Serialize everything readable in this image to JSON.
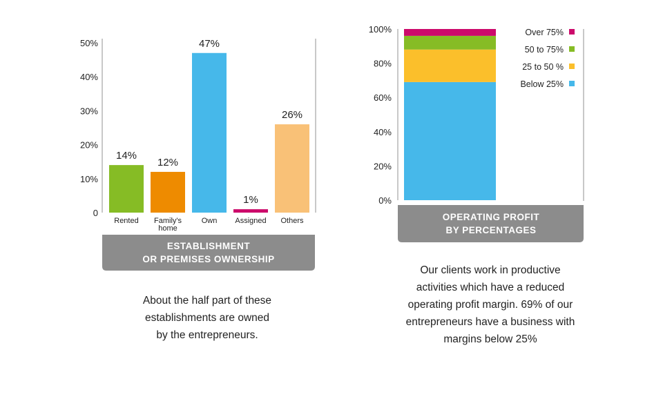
{
  "chart_data": [
    {
      "type": "bar",
      "title": "ESTABLISHMENT OR PREMISES OWNERSHIP",
      "title_lines": [
        "ESTABLISHMENT",
        "OR PREMISES OWNERSHIP"
      ],
      "categories": [
        {
          "label_lines": [
            "Rented"
          ]
        },
        {
          "label_lines": [
            "Family's",
            "home"
          ]
        },
        {
          "label_lines": [
            "Own"
          ]
        },
        {
          "label_lines": [
            "Assigned"
          ]
        },
        {
          "label_lines": [
            "Others"
          ]
        }
      ],
      "values": [
        14,
        12,
        47,
        1,
        26
      ],
      "data_labels": [
        "14%",
        "12%",
        "47%",
        "1%",
        "26%"
      ],
      "colors": [
        "#86bc25",
        "#ee8b00",
        "#46b8ea",
        "#cc0a6b",
        "#f9c177"
      ],
      "ylim": [
        0,
        50
      ],
      "yticks": [
        0,
        10,
        20,
        30,
        40,
        50
      ],
      "ytick_labels": [
        "0",
        "10%",
        "20%",
        "30%",
        "40%",
        "50%"
      ],
      "caption_lines": [
        "About the half part of these",
        "establishments are owned",
        "by the entrepreneurs."
      ]
    },
    {
      "type": "bar",
      "stacked": true,
      "title": "OPERATING PROFIT BY PERCENTAGES",
      "title_lines": [
        "OPERATING PROFIT",
        "BY PERCENTAGES"
      ],
      "series": [
        {
          "name": "Below 25%",
          "value": 69,
          "color": "#46b8ea"
        },
        {
          "name": "25 to 50 %",
          "value": 19,
          "color": "#fbbf2b"
        },
        {
          "name": "50 to 75%",
          "value": 8,
          "color": "#86bc25"
        },
        {
          "name": "Over 75%",
          "value": 4,
          "color": "#cc0a6b"
        }
      ],
      "legend_order": [
        "Over 75%",
        "50 to 75%",
        "25 to 50 %",
        "Below 25%"
      ],
      "legend_position": "top-right",
      "ylim": [
        0,
        100
      ],
      "yticks": [
        0,
        20,
        40,
        60,
        80,
        100
      ],
      "ytick_labels": [
        "0%",
        "20%",
        "40%",
        "60%",
        "80%",
        "100%"
      ],
      "caption_lines": [
        "Our clients work in productive",
        "activities which have a reduced",
        "operating profit margin. 69% of our",
        "entrepreneurs have a business with",
        "margins below 25%"
      ]
    }
  ]
}
